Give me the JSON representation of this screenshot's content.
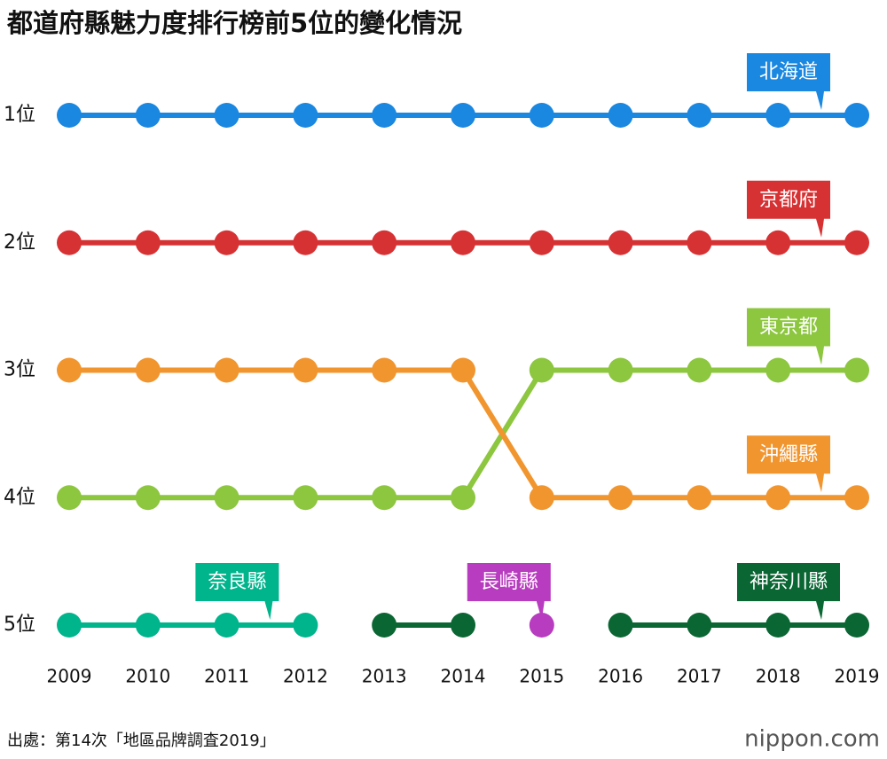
{
  "chart_data": {
    "type": "line",
    "title": "都道府縣魅力度排行榜前5位的變化情況",
    "categories": [
      "2009",
      "2010",
      "2011",
      "2012",
      "2013",
      "2014",
      "2015",
      "2016",
      "2017",
      "2018",
      "2019"
    ],
    "ylim": [
      5,
      1
    ],
    "yticks": [
      {
        "value": 1,
        "label": "1位"
      },
      {
        "value": 2,
        "label": "2位"
      },
      {
        "value": 3,
        "label": "3位"
      },
      {
        "value": 4,
        "label": "4位"
      },
      {
        "value": 5,
        "label": "5位"
      }
    ],
    "series": [
      {
        "name": "北海道",
        "color": "#1a87e0",
        "values": [
          1,
          1,
          1,
          1,
          1,
          1,
          1,
          1,
          1,
          1,
          1
        ]
      },
      {
        "name": "京都府",
        "color": "#d63234",
        "values": [
          2,
          2,
          2,
          2,
          2,
          2,
          2,
          2,
          2,
          2,
          2
        ]
      },
      {
        "name": "東京都",
        "color": "#8dc63f",
        "values": [
          4,
          4,
          4,
          4,
          4,
          4,
          3,
          3,
          3,
          3,
          3
        ]
      },
      {
        "name": "沖繩縣",
        "color": "#f1952f",
        "values": [
          3,
          3,
          3,
          3,
          3,
          3,
          4,
          4,
          4,
          4,
          4
        ]
      },
      {
        "name": "奈良縣",
        "color": "#00b48c",
        "values": [
          5,
          5,
          5,
          5,
          null,
          null,
          null,
          null,
          null,
          null,
          null
        ]
      },
      {
        "name": "長崎縣",
        "color": "#b83cbf",
        "values": [
          null,
          null,
          null,
          null,
          null,
          null,
          5,
          null,
          null,
          null,
          null
        ]
      },
      {
        "name": "神奈川縣",
        "color": "#0a6633",
        "values": [
          null,
          null,
          null,
          null,
          5,
          5,
          null,
          5,
          5,
          5,
          5
        ]
      }
    ],
    "source": "出處：第14次「地區品牌調査2019」",
    "logo": "nippon.com"
  }
}
